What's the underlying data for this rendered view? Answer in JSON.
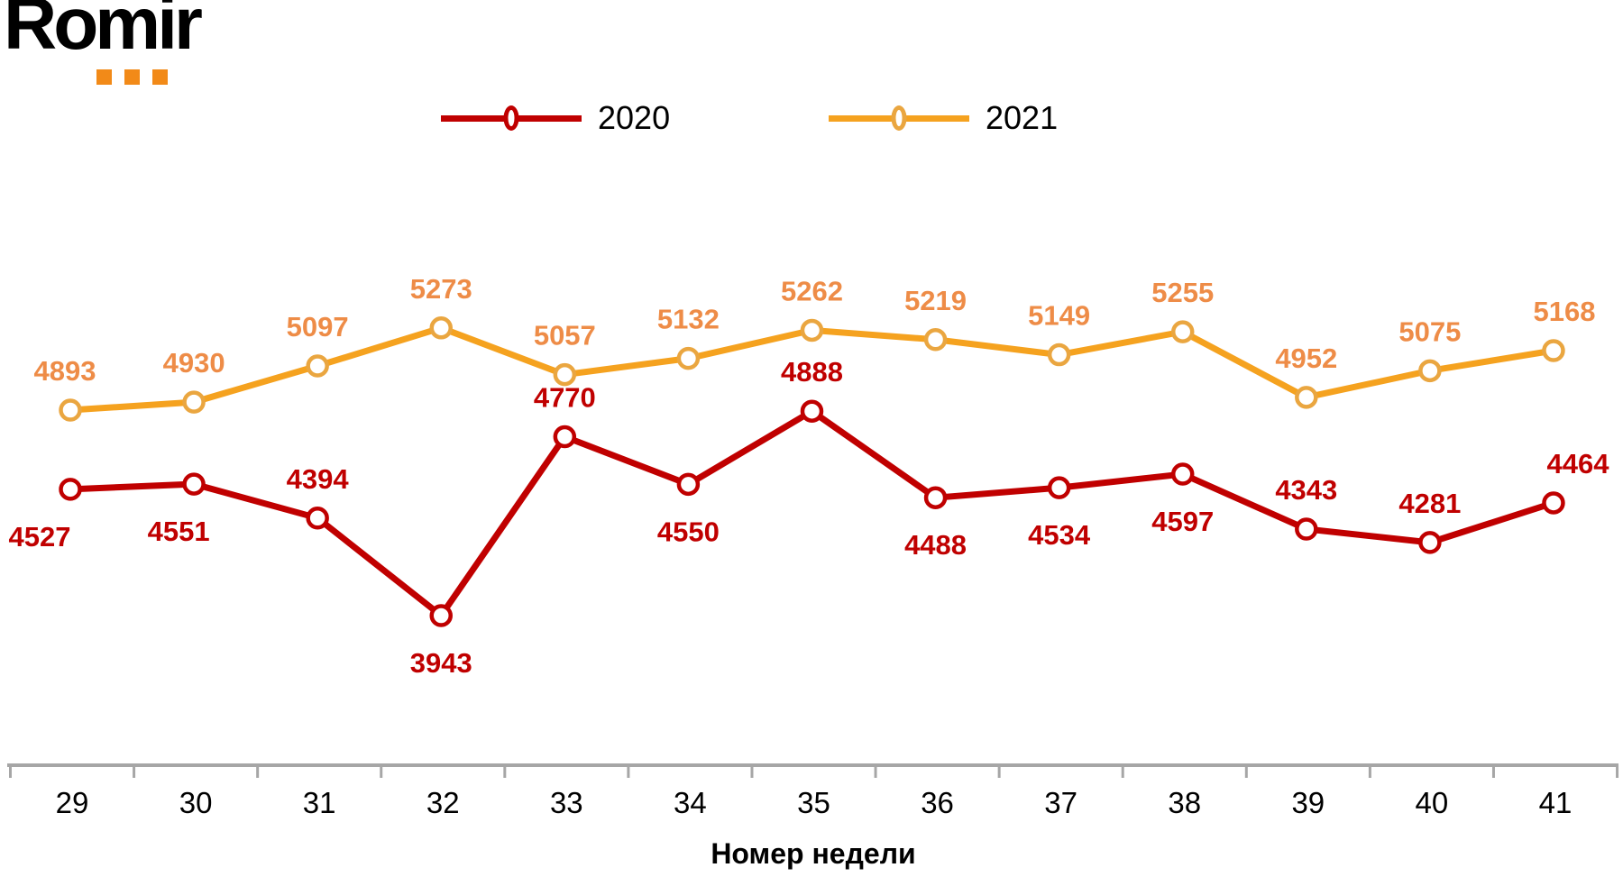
{
  "branding": {
    "logo_text": "Romir",
    "logo_accent_color": "#F28A18"
  },
  "chart_data": {
    "type": "line",
    "x_axis_title": "Номер недели",
    "categories": [
      "29",
      "30",
      "31",
      "32",
      "33",
      "34",
      "35",
      "36",
      "37",
      "38",
      "39",
      "40",
      "41"
    ],
    "series": [
      {
        "name": "2020",
        "color": "#C00000",
        "marker_stroke": "#C00000",
        "label_color": "#C00000",
        "values": [
          4527,
          4551,
          4394,
          3943,
          4770,
          4550,
          4888,
          4488,
          4534,
          4597,
          4343,
          4281,
          4464
        ],
        "label_sides": [
          "below",
          "below",
          "above",
          "below",
          "above",
          "below",
          "above",
          "below",
          "below",
          "below",
          "above",
          "above",
          "above"
        ],
        "label_dx": [
          -34,
          -17,
          0,
          0,
          0,
          0,
          0,
          0,
          0,
          0,
          0,
          0,
          27
        ]
      },
      {
        "name": "2021",
        "color": "#F5A21F",
        "marker_stroke": "#EAA640",
        "label_color": "#EE8C47",
        "values": [
          4893,
          4930,
          5097,
          5273,
          5057,
          5132,
          5262,
          5219,
          5149,
          5255,
          4952,
          5075,
          5168
        ],
        "label_sides": [
          "above",
          "above",
          "above",
          "above",
          "above",
          "above",
          "above",
          "above",
          "above",
          "above",
          "above",
          "above",
          "above"
        ],
        "label_dx": [
          -6,
          0,
          0,
          0,
          0,
          0,
          0,
          0,
          0,
          0,
          0,
          0,
          12
        ]
      }
    ],
    "legend_position": "top",
    "grid": false,
    "axis_color": "#A6A6A6",
    "marker_fill": "#FFFFFF",
    "value_range_hint": [
      3943,
      5273
    ]
  }
}
